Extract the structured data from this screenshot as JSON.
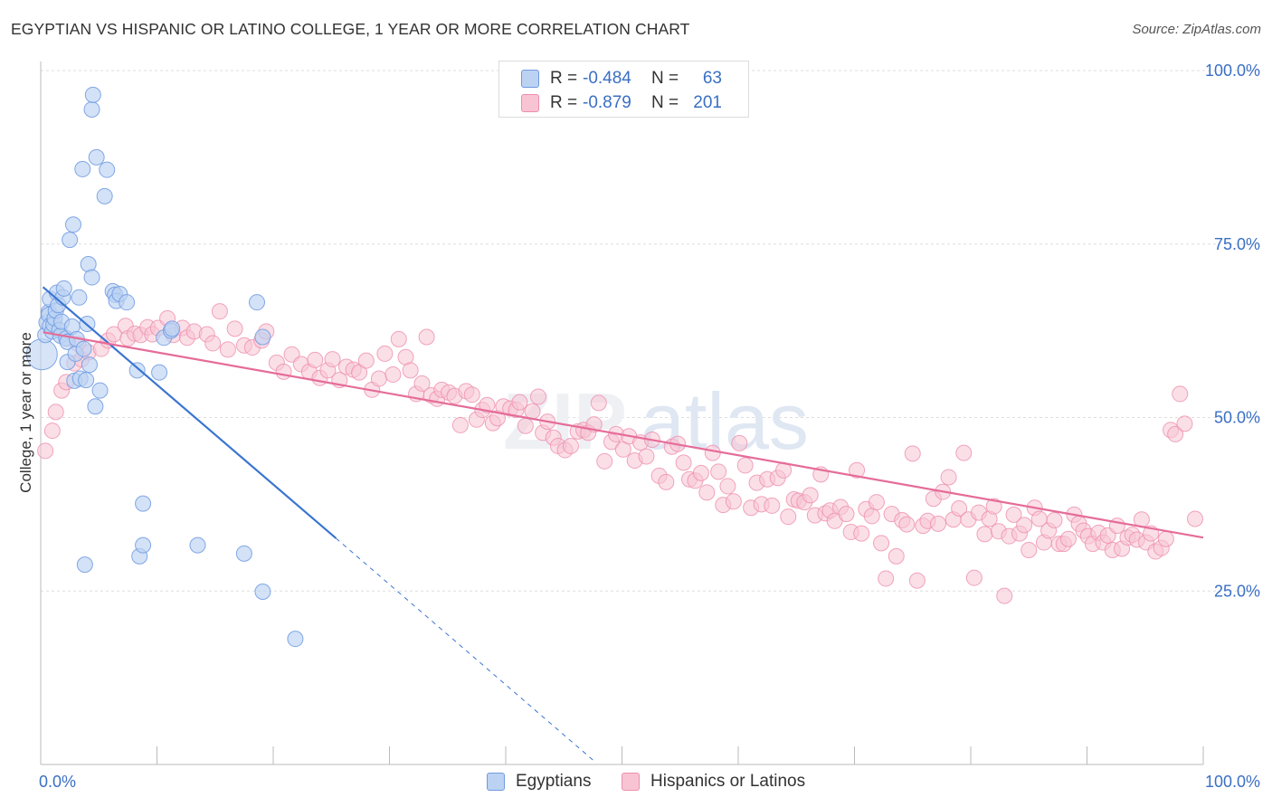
{
  "title": "EGYPTIAN VS HISPANIC OR LATINO COLLEGE, 1 YEAR OR MORE CORRELATION CHART",
  "source": "Source: ZipAtlas.com",
  "watermark": {
    "zip": "ZIP",
    "atlas": "atlas"
  },
  "stats": [
    {
      "r_label": "R =",
      "r_value": "-0.484",
      "n_label": "N =",
      "n_value": "63",
      "fill": "#bcd2f2",
      "stroke": "#6f9ae0"
    },
    {
      "r_label": "R =",
      "r_value": "-0.879",
      "n_label": "N =",
      "n_value": "201",
      "fill": "#f8c4d4",
      "stroke": "#ee8eae"
    }
  ],
  "legend": [
    {
      "label": "Egyptians",
      "fill": "#bcd2f2",
      "stroke": "#6f9ae0"
    },
    {
      "label": "Hispanics or Latinos",
      "fill": "#f8c4d4",
      "stroke": "#ee8eae"
    }
  ],
  "chart_data": {
    "type": "scatter",
    "title": "EGYPTIAN VS HISPANIC OR LATINO COLLEGE, 1 YEAR OR MORE CORRELATION CHART",
    "xlabel": "",
    "ylabel": "College, 1 year or more",
    "xlim": [
      0,
      100
    ],
    "ylim": [
      0,
      100
    ],
    "x_tick_labels": [
      "0.0%",
      "100.0%"
    ],
    "y_tick_labels": [
      "25.0%",
      "50.0%",
      "75.0%",
      "100.0%"
    ],
    "y_tick_values": [
      25,
      50,
      75,
      100
    ],
    "colors": {
      "egyptian_fill": "#bcd2f2",
      "egyptian_stroke": "#6f9ae0",
      "egyptian_line": "#3a75d0",
      "hispanic_fill": "#f8c4d4",
      "hispanic_stroke": "#ee8eae",
      "hispanic_line": "#e56c98",
      "tick_label": "#3a6fc4"
    },
    "series": [
      {
        "name": "Egyptians",
        "r": -0.484,
        "n": 63,
        "trend": {
          "x0": 0.2,
          "y0": 68.8,
          "x1": 25.4,
          "y1": 32.6,
          "dash_to_x": 47.6,
          "dash_to_y": 0.5
        },
        "points": [
          [
            0.1,
            59.1
          ],
          [
            0.4,
            61.9
          ],
          [
            0.5,
            63.7
          ],
          [
            0.7,
            65.2
          ],
          [
            0.7,
            64.8
          ],
          [
            0.8,
            67.1
          ],
          [
            0.8,
            63.2
          ],
          [
            1.0,
            62.4
          ],
          [
            1.1,
            63.4
          ],
          [
            1.2,
            64.3
          ],
          [
            1.3,
            65.4
          ],
          [
            1.4,
            68.0
          ],
          [
            1.5,
            66.2
          ],
          [
            1.6,
            62.6
          ],
          [
            1.7,
            61.8
          ],
          [
            1.8,
            63.8
          ],
          [
            1.9,
            67.3
          ],
          [
            2.0,
            68.6
          ],
          [
            2.2,
            61.4
          ],
          [
            2.3,
            60.9
          ],
          [
            2.3,
            58.0
          ],
          [
            2.5,
            75.6
          ],
          [
            2.7,
            63.1
          ],
          [
            2.8,
            77.8
          ],
          [
            2.9,
            55.3
          ],
          [
            3.0,
            59.2
          ],
          [
            3.1,
            61.3
          ],
          [
            3.3,
            67.3
          ],
          [
            3.4,
            55.6
          ],
          [
            3.6,
            85.8
          ],
          [
            3.7,
            59.9
          ],
          [
            3.8,
            28.8
          ],
          [
            3.9,
            55.4
          ],
          [
            4.0,
            63.5
          ],
          [
            4.1,
            72.1
          ],
          [
            4.2,
            57.6
          ],
          [
            4.4,
            94.4
          ],
          [
            4.4,
            70.2
          ],
          [
            4.5,
            96.5
          ],
          [
            4.7,
            51.6
          ],
          [
            4.8,
            87.5
          ],
          [
            5.1,
            53.9
          ],
          [
            5.5,
            81.9
          ],
          [
            5.7,
            85.7
          ],
          [
            6.2,
            68.2
          ],
          [
            6.4,
            67.7
          ],
          [
            6.5,
            66.8
          ],
          [
            6.8,
            67.8
          ],
          [
            7.4,
            66.6
          ],
          [
            8.3,
            56.8
          ],
          [
            8.5,
            30.0
          ],
          [
            8.8,
            31.6
          ],
          [
            8.8,
            37.6
          ],
          [
            10.2,
            56.5
          ],
          [
            10.6,
            61.5
          ],
          [
            11.2,
            62.5
          ],
          [
            11.3,
            62.8
          ],
          [
            13.5,
            31.6
          ],
          [
            17.5,
            30.4
          ],
          [
            18.6,
            66.6
          ],
          [
            19.1,
            61.6
          ],
          [
            19.1,
            24.9
          ],
          [
            21.9,
            18.1
          ]
        ]
      },
      {
        "name": "Hispanics or Latinos",
        "r": -0.879,
        "n": 201,
        "trend": {
          "x0": 0.2,
          "y0": 62.3,
          "x1": 100,
          "y1": 32.7
        },
        "points": [
          [
            0.4,
            45.2
          ],
          [
            1.0,
            48.1
          ],
          [
            1.3,
            50.8
          ],
          [
            1.8,
            53.9
          ],
          [
            2.2,
            55.1
          ],
          [
            2.9,
            57.8
          ],
          [
            3.2,
            60.6
          ],
          [
            3.5,
            58.4
          ],
          [
            4.1,
            59.4
          ],
          [
            5.2,
            59.9
          ],
          [
            5.8,
            61.1
          ],
          [
            6.3,
            62.0
          ],
          [
            7.3,
            63.2
          ],
          [
            7.5,
            61.4
          ],
          [
            8.1,
            62.1
          ],
          [
            8.6,
            61.9
          ],
          [
            9.2,
            63.0
          ],
          [
            9.6,
            62.0
          ],
          [
            10.1,
            62.9
          ],
          [
            10.9,
            64.3
          ],
          [
            11.4,
            61.9
          ],
          [
            12.2,
            62.9
          ],
          [
            12.6,
            61.5
          ],
          [
            13.2,
            62.4
          ],
          [
            14.3,
            62.0
          ],
          [
            14.8,
            60.7
          ],
          [
            15.4,
            65.3
          ],
          [
            16.1,
            59.8
          ],
          [
            16.7,
            62.8
          ],
          [
            17.5,
            60.4
          ],
          [
            18.2,
            60.1
          ],
          [
            19.0,
            61.1
          ],
          [
            19.4,
            62.4
          ],
          [
            20.3,
            57.9
          ],
          [
            20.9,
            56.6
          ],
          [
            21.6,
            59.1
          ],
          [
            22.4,
            57.7
          ],
          [
            23.1,
            56.6
          ],
          [
            23.6,
            58.3
          ],
          [
            24.0,
            55.7
          ],
          [
            24.7,
            56.8
          ],
          [
            25.1,
            58.4
          ],
          [
            25.7,
            55.4
          ],
          [
            26.3,
            57.3
          ],
          [
            26.9,
            56.9
          ],
          [
            27.4,
            56.5
          ],
          [
            28.0,
            58.2
          ],
          [
            28.5,
            54.0
          ],
          [
            29.1,
            55.6
          ],
          [
            29.6,
            59.2
          ],
          [
            30.3,
            56.2
          ],
          [
            30.8,
            61.3
          ],
          [
            31.4,
            58.7
          ],
          [
            31.8,
            56.8
          ],
          [
            32.3,
            53.4
          ],
          [
            32.8,
            54.9
          ],
          [
            33.2,
            61.6
          ],
          [
            33.6,
            53.2
          ],
          [
            34.1,
            52.7
          ],
          [
            34.5,
            54.0
          ],
          [
            35.1,
            53.6
          ],
          [
            35.6,
            53.1
          ],
          [
            36.1,
            48.9
          ],
          [
            36.6,
            53.8
          ],
          [
            37.1,
            53.3
          ],
          [
            37.5,
            49.7
          ],
          [
            38.0,
            51.1
          ],
          [
            38.4,
            51.8
          ],
          [
            38.9,
            49.2
          ],
          [
            39.3,
            49.9
          ],
          [
            39.8,
            51.6
          ],
          [
            40.4,
            51.3
          ],
          [
            40.9,
            51.1
          ],
          [
            41.2,
            52.2
          ],
          [
            41.7,
            48.8
          ],
          [
            42.3,
            50.9
          ],
          [
            42.8,
            53.0
          ],
          [
            43.2,
            47.8
          ],
          [
            43.6,
            49.4
          ],
          [
            44.1,
            47.1
          ],
          [
            44.5,
            45.9
          ],
          [
            45.1,
            45.3
          ],
          [
            45.6,
            45.9
          ],
          [
            46.2,
            48.0
          ],
          [
            46.7,
            48.2
          ],
          [
            47.1,
            47.8
          ],
          [
            47.6,
            49.0
          ],
          [
            48.0,
            52.1
          ],
          [
            48.5,
            43.7
          ],
          [
            49.1,
            46.5
          ],
          [
            49.5,
            47.6
          ],
          [
            50.1,
            45.4
          ],
          [
            50.6,
            47.3
          ],
          [
            51.1,
            43.8
          ],
          [
            51.6,
            46.4
          ],
          [
            52.1,
            44.4
          ],
          [
            52.6,
            46.8
          ],
          [
            53.2,
            41.6
          ],
          [
            53.8,
            40.7
          ],
          [
            54.3,
            45.8
          ],
          [
            54.8,
            46.2
          ],
          [
            55.3,
            43.5
          ],
          [
            55.8,
            41.1
          ],
          [
            56.3,
            40.9
          ],
          [
            56.8,
            42.0
          ],
          [
            57.3,
            39.2
          ],
          [
            57.8,
            44.9
          ],
          [
            58.3,
            42.2
          ],
          [
            58.7,
            37.4
          ],
          [
            59.1,
            40.1
          ],
          [
            59.6,
            37.9
          ],
          [
            60.1,
            46.3
          ],
          [
            60.6,
            43.1
          ],
          [
            61.1,
            37.0
          ],
          [
            61.6,
            40.6
          ],
          [
            62.0,
            37.5
          ],
          [
            62.5,
            41.1
          ],
          [
            62.9,
            37.3
          ],
          [
            63.4,
            41.3
          ],
          [
            63.9,
            42.4
          ],
          [
            64.3,
            35.7
          ],
          [
            64.8,
            38.2
          ],
          [
            65.2,
            38.0
          ],
          [
            65.7,
            37.8
          ],
          [
            66.2,
            38.8
          ],
          [
            66.6,
            35.9
          ],
          [
            67.1,
            41.8
          ],
          [
            67.5,
            36.2
          ],
          [
            67.9,
            36.6
          ],
          [
            68.3,
            35.1
          ],
          [
            68.8,
            37.1
          ],
          [
            69.3,
            36.1
          ],
          [
            69.7,
            33.5
          ],
          [
            70.2,
            42.4
          ],
          [
            70.6,
            33.3
          ],
          [
            71.0,
            36.8
          ],
          [
            71.5,
            35.8
          ],
          [
            71.9,
            37.8
          ],
          [
            72.3,
            31.9
          ],
          [
            72.7,
            26.8
          ],
          [
            73.2,
            36.1
          ],
          [
            73.6,
            30.0
          ],
          [
            74.1,
            35.2
          ],
          [
            74.5,
            34.6
          ],
          [
            75.0,
            44.8
          ],
          [
            75.4,
            26.5
          ],
          [
            75.9,
            34.4
          ],
          [
            76.3,
            35.1
          ],
          [
            76.8,
            38.3
          ],
          [
            77.2,
            34.7
          ],
          [
            77.6,
            39.3
          ],
          [
            78.1,
            41.4
          ],
          [
            78.5,
            35.3
          ],
          [
            79.0,
            36.9
          ],
          [
            79.4,
            44.9
          ],
          [
            79.8,
            35.3
          ],
          [
            80.3,
            26.9
          ],
          [
            80.7,
            36.3
          ],
          [
            81.2,
            33.2
          ],
          [
            81.6,
            35.4
          ],
          [
            82.0,
            37.2
          ],
          [
            82.4,
            33.6
          ],
          [
            82.9,
            24.3
          ],
          [
            83.3,
            32.9
          ],
          [
            83.7,
            36.0
          ],
          [
            84.2,
            33.3
          ],
          [
            84.6,
            34.5
          ],
          [
            85.0,
            30.9
          ],
          [
            85.5,
            37.0
          ],
          [
            85.9,
            35.4
          ],
          [
            86.3,
            32.0
          ],
          [
            86.7,
            33.7
          ],
          [
            87.2,
            35.2
          ],
          [
            87.6,
            31.8
          ],
          [
            88.0,
            31.8
          ],
          [
            88.4,
            32.5
          ],
          [
            88.9,
            36.0
          ],
          [
            89.3,
            34.7
          ],
          [
            89.7,
            33.7
          ],
          [
            90.1,
            32.9
          ],
          [
            90.5,
            31.8
          ],
          [
            91.0,
            33.4
          ],
          [
            91.4,
            32.0
          ],
          [
            91.8,
            33.0
          ],
          [
            92.2,
            30.9
          ],
          [
            92.6,
            34.4
          ],
          [
            93.0,
            31.1
          ],
          [
            93.5,
            32.7
          ],
          [
            93.9,
            33.1
          ],
          [
            94.3,
            32.4
          ],
          [
            94.7,
            35.3
          ],
          [
            95.1,
            32.0
          ],
          [
            95.5,
            33.3
          ],
          [
            95.9,
            30.7
          ],
          [
            96.4,
            31.2
          ],
          [
            96.8,
            32.5
          ],
          [
            97.2,
            48.2
          ],
          [
            97.6,
            47.6
          ],
          [
            98.0,
            53.4
          ],
          [
            98.4,
            49.1
          ],
          [
            99.3,
            35.4
          ]
        ]
      }
    ]
  }
}
